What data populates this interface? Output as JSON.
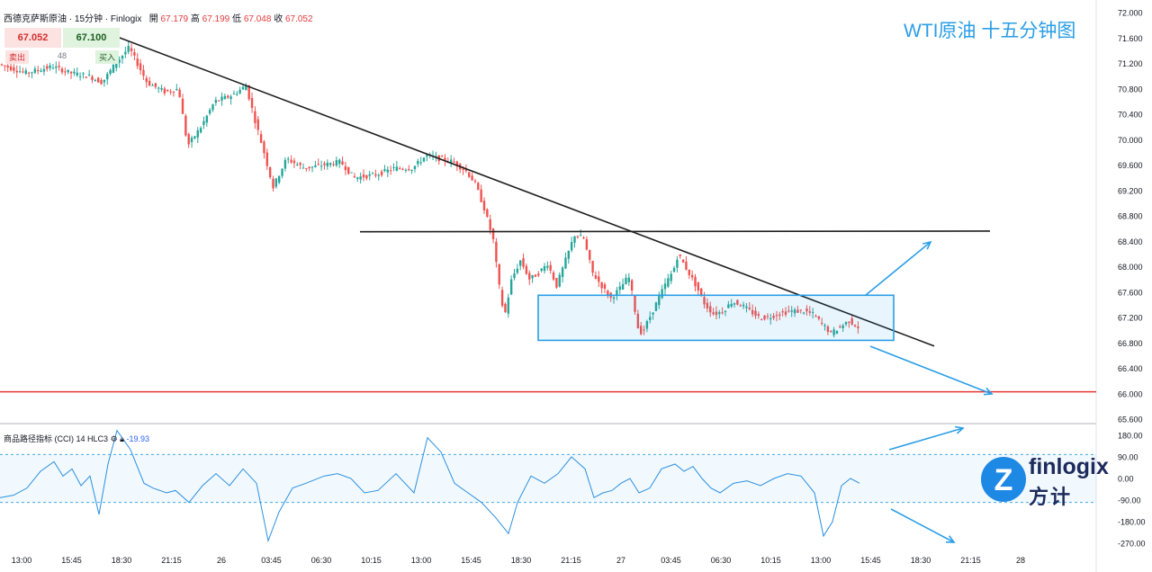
{
  "header": {
    "symbol": "西德克萨斯原油",
    "interval": "15分钟",
    "source": "Finlogix",
    "open_label": "開",
    "open": "67.179",
    "high_label": "高",
    "high": "67.199",
    "low_label": "低",
    "low": "67.048",
    "close_label": "收",
    "close": "67.052"
  },
  "quote": {
    "sell_price": "67.052",
    "buy_price": "67.100",
    "sell_label": "卖出",
    "buy_label": "买入",
    "spread": "48"
  },
  "title": "WTI原油 十五分钟图",
  "indicator": {
    "name": "商品路径指标 (CCI)",
    "params": "14 HLC3",
    "value": "-19.93"
  },
  "logo": {
    "word": "finlogix",
    "cn": "方计",
    "letter": "Z"
  },
  "colors": {
    "up": "#26a69a",
    "down": "#ef5350",
    "cci_line": "#2a8fe0",
    "annotation_blue": "#2a9ee6",
    "support_line": "#e53935",
    "trend_line": "#1f1f1f"
  },
  "chart_data": [
    {
      "type": "candlestick",
      "title": "WTI原油 十五分钟图",
      "x_tick_labels": [
        "13:00",
        "15:45",
        "18:30",
        "21:15",
        "26",
        "03:45",
        "06:30",
        "10:15",
        "13:00",
        "15:45",
        "18:30",
        "21:15",
        "27",
        "03:45",
        "06:30",
        "10:15",
        "13:00",
        "15:45",
        "18:30",
        "21:15",
        "28"
      ],
      "y_tick_labels": [
        "65.600",
        "66.000",
        "66.400",
        "66.800",
        "67.200",
        "67.600",
        "68.000",
        "68.400",
        "68.800",
        "69.200",
        "69.600",
        "70.000",
        "70.400",
        "70.800",
        "71.200",
        "71.600",
        "72.000"
      ],
      "ylim": [
        65.5,
        72.1
      ],
      "price_path": [
        [
          0,
          71.19
        ],
        [
          30,
          71.05
        ],
        [
          60,
          71.15
        ],
        [
          80,
          71.05
        ],
        [
          100,
          71.0
        ],
        [
          115,
          70.9
        ],
        [
          130,
          71.2
        ],
        [
          145,
          71.45
        ],
        [
          165,
          70.9
        ],
        [
          185,
          70.75
        ],
        [
          200,
          70.8
        ],
        [
          210,
          69.9
        ],
        [
          225,
          70.2
        ],
        [
          240,
          70.6
        ],
        [
          260,
          70.7
        ],
        [
          275,
          70.85
        ],
        [
          285,
          70.3
        ],
        [
          295,
          69.8
        ],
        [
          305,
          69.25
        ],
        [
          320,
          69.7
        ],
        [
          340,
          69.55
        ],
        [
          360,
          69.6
        ],
        [
          380,
          69.65
        ],
        [
          395,
          69.4
        ],
        [
          420,
          69.45
        ],
        [
          440,
          69.55
        ],
        [
          460,
          69.55
        ],
        [
          475,
          69.75
        ],
        [
          490,
          69.7
        ],
        [
          505,
          69.65
        ],
        [
          520,
          69.5
        ],
        [
          530,
          69.3
        ],
        [
          540,
          68.9
        ],
        [
          550,
          68.4
        ],
        [
          555,
          67.8
        ],
        [
          562,
          67.2
        ],
        [
          570,
          67.8
        ],
        [
          580,
          68.1
        ],
        [
          590,
          67.8
        ],
        [
          600,
          67.9
        ],
        [
          610,
          68.05
        ],
        [
          620,
          67.7
        ],
        [
          630,
          68.1
        ],
        [
          640,
          68.5
        ],
        [
          650,
          68.45
        ],
        [
          660,
          67.9
        ],
        [
          670,
          67.7
        ],
        [
          680,
          67.5
        ],
        [
          690,
          67.65
        ],
        [
          700,
          67.85
        ],
        [
          705,
          67.5
        ],
        [
          710,
          67.05
        ],
        [
          715,
          66.95
        ],
        [
          720,
          67.1
        ],
        [
          730,
          67.4
        ],
        [
          740,
          67.7
        ],
        [
          750,
          67.95
        ],
        [
          755,
          68.2
        ],
        [
          765,
          67.95
        ],
        [
          775,
          67.7
        ],
        [
          785,
          67.4
        ],
        [
          795,
          67.25
        ],
        [
          805,
          67.3
        ],
        [
          815,
          67.45
        ],
        [
          825,
          67.4
        ],
        [
          835,
          67.3
        ],
        [
          845,
          67.2
        ],
        [
          855,
          67.2
        ],
        [
          865,
          67.25
        ],
        [
          880,
          67.3
        ],
        [
          895,
          67.3
        ],
        [
          905,
          67.25
        ],
        [
          915,
          67.1
        ],
        [
          925,
          66.95
        ],
        [
          935,
          67.05
        ],
        [
          945,
          67.15
        ],
        [
          955,
          67.05
        ]
      ],
      "trendlines": [
        {
          "from": [
            130,
            71.62
          ],
          "to": [
            1038,
            66.75
          ]
        },
        {
          "from": [
            400,
            68.55
          ],
          "to": [
            1100,
            68.56
          ]
        }
      ],
      "horizontal_lines": [
        {
          "y": 66.03
        }
      ],
      "consolidation_box": {
        "y_top": 67.55,
        "y_bottom": 66.84
      },
      "annotation_arrows": [
        "up",
        "down"
      ]
    },
    {
      "type": "line",
      "name": "商品路径指标 (CCI)",
      "y_tick_labels": [
        "180.00",
        "90.00",
        "0.00",
        "-90.00",
        "-180.00",
        "-270.00"
      ],
      "ylim": [
        -290,
        200
      ],
      "reference_levels": [
        100,
        -100
      ],
      "values": [
        [
          0,
          -80
        ],
        [
          15,
          -70
        ],
        [
          30,
          -40
        ],
        [
          45,
          30
        ],
        [
          60,
          70
        ],
        [
          70,
          10
        ],
        [
          80,
          40
        ],
        [
          90,
          -30
        ],
        [
          100,
          10
        ],
        [
          110,
          -150
        ],
        [
          120,
          60
        ],
        [
          130,
          200
        ],
        [
          145,
          120
        ],
        [
          160,
          -20
        ],
        [
          170,
          -40
        ],
        [
          185,
          -60
        ],
        [
          195,
          -50
        ],
        [
          210,
          -100
        ],
        [
          225,
          -30
        ],
        [
          240,
          20
        ],
        [
          255,
          -30
        ],
        [
          270,
          40
        ],
        [
          285,
          -20
        ],
        [
          298,
          -260
        ],
        [
          310,
          -140
        ],
        [
          325,
          -40
        ],
        [
          340,
          -20
        ],
        [
          360,
          10
        ],
        [
          375,
          20
        ],
        [
          390,
          0
        ],
        [
          405,
          -60
        ],
        [
          420,
          -50
        ],
        [
          440,
          20
        ],
        [
          460,
          -60
        ],
        [
          475,
          170
        ],
        [
          490,
          110
        ],
        [
          505,
          -20
        ],
        [
          520,
          -60
        ],
        [
          535,
          -100
        ],
        [
          550,
          -160
        ],
        [
          565,
          -230
        ],
        [
          575,
          -100
        ],
        [
          590,
          10
        ],
        [
          605,
          -20
        ],
        [
          620,
          20
        ],
        [
          635,
          90
        ],
        [
          650,
          40
        ],
        [
          660,
          -80
        ],
        [
          670,
          -60
        ],
        [
          680,
          -50
        ],
        [
          690,
          -20
        ],
        [
          700,
          0
        ],
        [
          710,
          -60
        ],
        [
          722,
          -40
        ],
        [
          735,
          40
        ],
        [
          750,
          60
        ],
        [
          760,
          30
        ],
        [
          770,
          50
        ],
        [
          780,
          0
        ],
        [
          790,
          -40
        ],
        [
          800,
          -60
        ],
        [
          815,
          -20
        ],
        [
          830,
          -10
        ],
        [
          845,
          -30
        ],
        [
          860,
          0
        ],
        [
          875,
          20
        ],
        [
          890,
          10
        ],
        [
          905,
          -60
        ],
        [
          915,
          -240
        ],
        [
          925,
          -180
        ],
        [
          935,
          -30
        ],
        [
          945,
          0
        ],
        [
          955,
          -20
        ]
      ]
    }
  ]
}
